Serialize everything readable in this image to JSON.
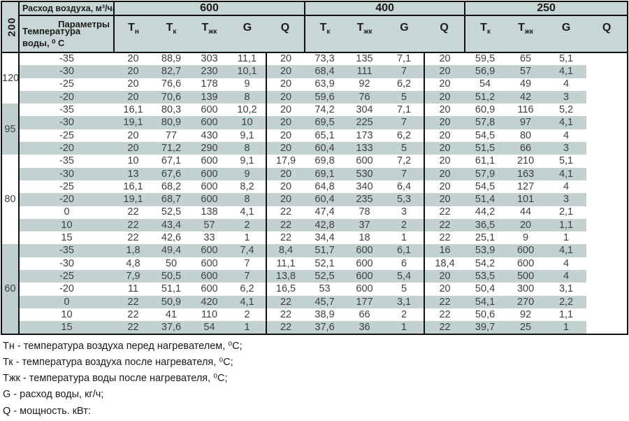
{
  "colors": {
    "header_bg": "#c9d6d6",
    "stripe_bg": "#c3d1d1",
    "group_shade_bg": "#bfcecf",
    "border": "#111111",
    "data_text": "#3b4242"
  },
  "table": {
    "flow_header_label": "Расход воздуха, м³/час",
    "params_label": "Параметры",
    "water_temp_label": "Температура воды, ⁰ С",
    "left_axis_label": "200",
    "flow_groups": [
      {
        "label": "600",
        "columns": [
          {
            "main": "Т",
            "sub": "н"
          },
          {
            "main": "Т",
            "sub": "к"
          },
          {
            "main": "Т",
            "sub": "жк"
          },
          {
            "main": "G",
            "sub": ""
          },
          {
            "main": "Q",
            "sub": ""
          }
        ]
      },
      {
        "label": "400",
        "columns": [
          {
            "main": "Т",
            "sub": "к"
          },
          {
            "main": "Т",
            "sub": "жк"
          },
          {
            "main": "G",
            "sub": ""
          },
          {
            "main": "Q",
            "sub": ""
          }
        ]
      },
      {
        "label": "250",
        "columns": [
          {
            "main": "Т",
            "sub": "к"
          },
          {
            "main": "Т",
            "sub": "жк"
          },
          {
            "main": "G",
            "sub": ""
          },
          {
            "main": "Q",
            "sub": ""
          }
        ]
      }
    ],
    "row_groups": [
      {
        "water_temp": "120",
        "rows": [
          [
            "-35",
            "20",
            "88,9",
            "303",
            "11,1",
            "20",
            "73,3",
            "135",
            "7,1",
            "20",
            "59,5",
            "65",
            "5,1"
          ],
          [
            "-30",
            "20",
            "82,7",
            "230",
            "10,1",
            "20",
            "68,4",
            "111",
            "7",
            "20",
            "56,9",
            "57",
            "4,1"
          ],
          [
            "-25",
            "20",
            "76,6",
            "178",
            "9",
            "20",
            "63,9",
            "92",
            "6,2",
            "20",
            "54",
            "49",
            "4"
          ],
          [
            "-20",
            "20",
            "70,6",
            "139",
            "8",
            "20",
            "59,6",
            "76",
            "5",
            "20",
            "51,2",
            "42",
            "3"
          ]
        ]
      },
      {
        "water_temp": "95",
        "rows": [
          [
            "-35",
            "16,1",
            "80,3",
            "600",
            "10,2",
            "20",
            "74,2",
            "304",
            "7,1",
            "20",
            "60,9",
            "116",
            "5,2"
          ],
          [
            "-30",
            "19,1",
            "80,9",
            "600",
            "10",
            "20",
            "69,5",
            "225",
            "7",
            "20",
            "57,8",
            "97",
            "4,1"
          ],
          [
            "-25",
            "20",
            "77",
            "430",
            "9,1",
            "20",
            "65,1",
            "173",
            "6,2",
            "20",
            "54,5",
            "80",
            "4"
          ],
          [
            "-20",
            "20",
            "71,2",
            "290",
            "8",
            "20",
            "60,4",
            "133",
            "5",
            "20",
            "51,5",
            "66",
            "3"
          ]
        ]
      },
      {
        "water_temp": "80",
        "rows": [
          [
            "-35",
            "10",
            "67,1",
            "600",
            "9,1",
            "17,9",
            "69,8",
            "600",
            "7,2",
            "20",
            "61,1",
            "210",
            "5,1"
          ],
          [
            "-30",
            "13",
            "67,6",
            "600",
            "9",
            "20",
            "69,1",
            "530",
            "7",
            "20",
            "57,9",
            "163",
            "4,1"
          ],
          [
            "-25",
            "16,1",
            "68,2",
            "600",
            "8,2",
            "20",
            "64,8",
            "340",
            "6,4",
            "20",
            "54,5",
            "127",
            "4"
          ],
          [
            "-20",
            "19,1",
            "68,7",
            "600",
            "8",
            "20",
            "60,4",
            "235",
            "5,3",
            "20",
            "51,4",
            "101",
            "3"
          ],
          [
            "0",
            "22",
            "52,5",
            "138",
            "4,1",
            "22",
            "47,4",
            "78",
            "3",
            "22",
            "44,2",
            "44",
            "2,1"
          ],
          [
            "10",
            "22",
            "43,4",
            "57",
            "2",
            "22",
            "42,8",
            "37",
            "2",
            "22",
            "36,5",
            "20",
            "1,1"
          ],
          [
            "15",
            "22",
            "42,6",
            "33",
            "1",
            "22",
            "34,4",
            "18",
            "1",
            "22",
            "25,1",
            "9",
            "1"
          ]
        ]
      },
      {
        "water_temp": "60",
        "rows": [
          [
            "-35",
            "1,8",
            "49,4",
            "600",
            "7,4",
            "8,4",
            "51,7",
            "600",
            "6,1",
            "16",
            "53,9",
            "600",
            "4,1"
          ],
          [
            "-30",
            "4,8",
            "50",
            "600",
            "7",
            "11,1",
            "52,1",
            "600",
            "6",
            "18,4",
            "54,2",
            "600",
            "4"
          ],
          [
            "-25",
            "7,9",
            "50,5",
            "600",
            "7",
            "13,8",
            "52,5",
            "600",
            "5,4",
            "20",
            "53,5",
            "500",
            "4"
          ],
          [
            "-20",
            "11",
            "51,1",
            "600",
            "6,2",
            "16,5",
            "53",
            "600",
            "5",
            "20",
            "50,4",
            "300",
            "3,1"
          ],
          [
            "0",
            "22",
            "50,9",
            "420",
            "4,1",
            "22",
            "45,7",
            "177",
            "3,1",
            "22",
            "54,1",
            "270",
            "2,2"
          ],
          [
            "10",
            "22",
            "41",
            "110",
            "2",
            "22",
            "38,9",
            "66",
            "2",
            "22",
            "50,6",
            "92",
            "1,1"
          ],
          [
            "15",
            "22",
            "37,6",
            "54",
            "1",
            "22",
            "37,6",
            "36",
            "1",
            "22",
            "39,7",
            "25",
            "1"
          ]
        ]
      }
    ]
  },
  "legend": [
    "Тн - температура воздуха перед нагревателем, ⁰С;",
    "Тк - температура воздуха после нагревателя, ⁰С;",
    "Тжк - температура воды после нагревателя, ⁰С;",
    "G - расход воды, кг/ч;",
    "Q - мощность. кВт:"
  ]
}
